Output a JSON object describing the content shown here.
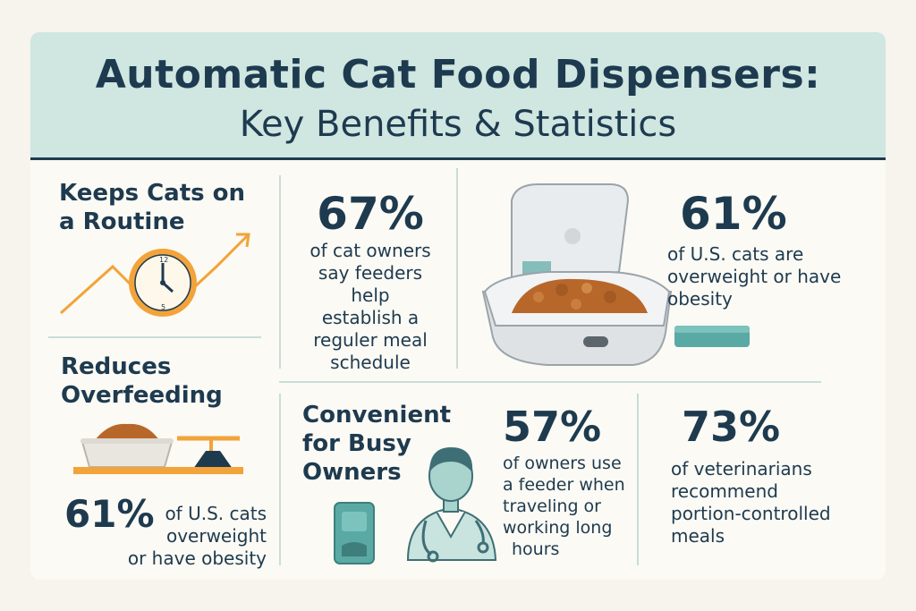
{
  "header": {
    "title_line1": "Automatic Cat Food Dispensers:",
    "title_line2": "Key Benefits & Statistics"
  },
  "routine": {
    "heading_line1": "Keeps Cats on",
    "heading_line2": "a Routine",
    "icon": "clock-with-trend-arrow-icon"
  },
  "stat_routine": {
    "value": "67%",
    "text_lines": [
      "of cat owners",
      "say feeders help",
      "establish a",
      "reguler meal",
      "schedule"
    ]
  },
  "dispenser": {
    "icon": "automatic-feeder-icon"
  },
  "stat_overweight": {
    "value": "61%",
    "text_lines": [
      "of U.S. cats are",
      "overweight or have",
      "obesity"
    ]
  },
  "overfeeding": {
    "heading_line1": "Reduces",
    "heading_line2": "Overfeeding",
    "icon": "food-bowl-scale-icon",
    "stat_value": "61%",
    "stat_lines": [
      "of U.S. cats",
      "overweight",
      "or have obesity"
    ]
  },
  "busy": {
    "heading_lines": [
      "Convenient",
      "for Busy",
      "Owners"
    ],
    "icon": "veterinarian-icon",
    "device_icon": "feeder-device-icon"
  },
  "stat_travel": {
    "value": "57%",
    "text_lines": [
      "of owners use",
      "a feeder when",
      "traveling or",
      "working long",
      "hours"
    ]
  },
  "stat_vets": {
    "value": "73%",
    "text_lines": [
      "of veterinarians",
      "recommend",
      "portion-controlled",
      "meals"
    ]
  },
  "colors": {
    "navy": "#1e3a4f",
    "header_bg": "#cfe6e1",
    "accent_orange": "#f2a33a",
    "teal": "#5aa9a4"
  }
}
